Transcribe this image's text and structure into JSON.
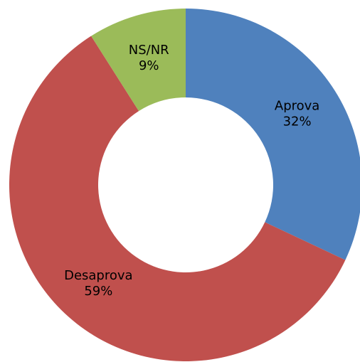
{
  "chart_data": {
    "type": "donut",
    "categories": [
      "Aprova",
      "Desaprova",
      "NS/NR"
    ],
    "values": [
      32,
      59,
      9
    ],
    "value_labels": [
      "32%",
      "59%",
      "9%"
    ],
    "colors": [
      "#4f81bd",
      "#c0504d",
      "#9bbb59"
    ]
  }
}
